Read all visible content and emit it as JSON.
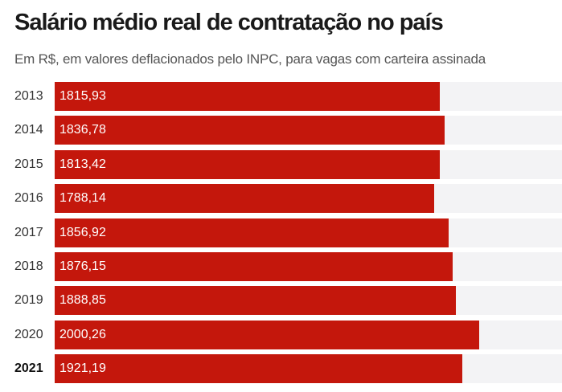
{
  "chart_data": {
    "type": "bar",
    "orientation": "horizontal",
    "title": "Salário médio real de contratação no país",
    "subtitle": "Em R$, em valores deflacionados pelo INPC, para vagas com carteira assinada",
    "categories": [
      "2013",
      "2014",
      "2015",
      "2016",
      "2017",
      "2018",
      "2019",
      "2020",
      "2021"
    ],
    "values": [
      1815.93,
      1836.78,
      1813.42,
      1788.14,
      1856.92,
      1876.15,
      1888.85,
      2000.26,
      1921.19
    ],
    "value_labels": [
      "1815,93",
      "1836,78",
      "1813,42",
      "1788,14",
      "1856,92",
      "1876,15",
      "1888,85",
      "2000,26",
      "1921,19"
    ],
    "highlight_category": "2021",
    "xlim": [
      0,
      2390
    ],
    "xlabel": "",
    "ylabel": "",
    "grid": false,
    "colors": {
      "bar": "#c4170c",
      "track": "#f3f3f5"
    }
  }
}
